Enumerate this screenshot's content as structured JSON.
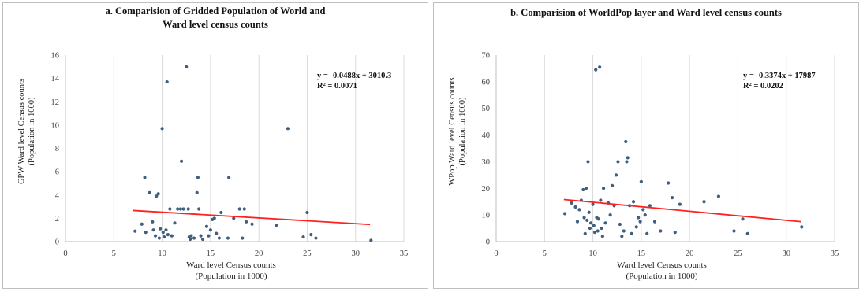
{
  "chart_data": [
    {
      "type": "scatter",
      "title": "a. Comparision of Gridded Population of World and",
      "title_line2": "Ward level census counts",
      "xlabel": "Ward level Census counts",
      "xlabel_line2": "(Population in 1000)",
      "ylabel": "GPW Ward level Census counts",
      "ylabel_line2": "(Population in 1000)",
      "xlim": [
        0,
        35
      ],
      "ylim": [
        0,
        16
      ],
      "x_ticks": [
        "0",
        "5",
        "10",
        "15",
        "20",
        "25",
        "30",
        "35"
      ],
      "y_ticks": [
        "0",
        "2",
        "4",
        "6",
        "8",
        "10",
        "12",
        "14",
        "16"
      ],
      "grid": "vertical",
      "marker_color": "#3f5f7f",
      "trendline_color": "#ff2020",
      "equation": "y = -0.0488x + 3010.3",
      "r_squared": "R² = 0.0071",
      "trendline": {
        "x1": 7,
        "y1": 2.67,
        "x2": 31.5,
        "y2": 1.47
      },
      "points": [
        [
          7.2,
          0.9
        ],
        [
          7.9,
          1.5
        ],
        [
          8.2,
          5.5
        ],
        [
          8.3,
          0.8
        ],
        [
          8.7,
          4.2
        ],
        [
          9.0,
          1.7
        ],
        [
          9.1,
          1.0
        ],
        [
          9.3,
          0.5
        ],
        [
          9.4,
          3.9
        ],
        [
          9.6,
          4.1
        ],
        [
          9.7,
          0.3
        ],
        [
          9.8,
          1.1
        ],
        [
          10.0,
          9.7
        ],
        [
          10.1,
          0.8
        ],
        [
          10.2,
          0.4
        ],
        [
          10.4,
          1.0
        ],
        [
          10.5,
          13.7
        ],
        [
          10.6,
          0.6
        ],
        [
          10.8,
          2.8
        ],
        [
          11.0,
          0.5
        ],
        [
          11.3,
          1.6
        ],
        [
          11.6,
          2.8
        ],
        [
          11.9,
          2.8
        ],
        [
          12.0,
          6.9
        ],
        [
          12.2,
          2.8
        ],
        [
          12.5,
          15.0
        ],
        [
          12.7,
          2.8
        ],
        [
          12.8,
          0.4
        ],
        [
          12.9,
          0.2
        ],
        [
          13.0,
          0.5
        ],
        [
          13.3,
          0.3
        ],
        [
          13.6,
          4.2
        ],
        [
          13.7,
          5.5
        ],
        [
          13.8,
          2.8
        ],
        [
          14.0,
          0.5
        ],
        [
          14.2,
          0.2
        ],
        [
          14.6,
          1.3
        ],
        [
          14.8,
          0.5
        ],
        [
          15.0,
          1.0
        ],
        [
          15.2,
          1.9
        ],
        [
          15.4,
          2.0
        ],
        [
          15.6,
          0.7
        ],
        [
          15.9,
          0.3
        ],
        [
          16.1,
          2.5
        ],
        [
          16.8,
          0.3
        ],
        [
          16.9,
          5.5
        ],
        [
          17.4,
          2.0
        ],
        [
          18.0,
          2.8
        ],
        [
          18.3,
          0.3
        ],
        [
          18.5,
          2.8
        ],
        [
          18.7,
          1.7
        ],
        [
          19.3,
          1.5
        ],
        [
          21.8,
          1.4
        ],
        [
          23.0,
          9.7
        ],
        [
          24.6,
          0.4
        ],
        [
          25.0,
          2.5
        ],
        [
          25.4,
          0.6
        ],
        [
          25.9,
          0.3
        ],
        [
          31.6,
          0.1
        ]
      ]
    },
    {
      "type": "scatter",
      "title": "b. Comparision of WorldPop layer and Ward level census counts",
      "title_line2": "",
      "xlabel": "Ward level Census counts",
      "xlabel_line2": "(Population in 1000)",
      "ylabel": "WPop Ward level Census counts",
      "ylabel_line2": "(Population in 1000)",
      "xlim": [
        0,
        35
      ],
      "ylim": [
        0,
        70
      ],
      "x_ticks": [
        "0",
        "5",
        "10",
        "15",
        "20",
        "25",
        "30",
        "35"
      ],
      "y_ticks": [
        "0",
        "10",
        "20",
        "30",
        "40",
        "50",
        "60",
        "70"
      ],
      "grid": "vertical",
      "marker_color": "#3f5f7f",
      "trendline_color": "#ff2020",
      "equation": "y = -0.3374x + 17987",
      "r_squared": "R² = 0.0202",
      "trendline": {
        "x1": 7,
        "y1": 15.8,
        "x2": 31.5,
        "y2": 7.5
      },
      "points": [
        [
          7.1,
          10.5
        ],
        [
          7.8,
          14.5
        ],
        [
          8.2,
          13.0
        ],
        [
          8.4,
          7.5
        ],
        [
          8.6,
          12.0
        ],
        [
          8.8,
          15.5
        ],
        [
          9.0,
          19.5
        ],
        [
          9.1,
          9.0
        ],
        [
          9.2,
          3.0
        ],
        [
          9.3,
          20.0
        ],
        [
          9.4,
          8.0
        ],
        [
          9.5,
          30.0
        ],
        [
          9.6,
          11.0
        ],
        [
          9.7,
          5.0
        ],
        [
          9.8,
          7.0
        ],
        [
          10.0,
          14.0
        ],
        [
          10.1,
          6.0
        ],
        [
          10.2,
          3.5
        ],
        [
          10.3,
          64.5
        ],
        [
          10.4,
          9.0
        ],
        [
          10.5,
          4.0
        ],
        [
          10.6,
          8.5
        ],
        [
          10.7,
          65.5
        ],
        [
          10.8,
          15.5
        ],
        [
          10.9,
          5.0
        ],
        [
          11.0,
          2.0
        ],
        [
          11.1,
          20.0
        ],
        [
          11.3,
          7.0
        ],
        [
          11.6,
          14.5
        ],
        [
          11.8,
          10.0
        ],
        [
          12.0,
          21.0
        ],
        [
          12.2,
          13.5
        ],
        [
          12.4,
          25.0
        ],
        [
          12.6,
          30.0
        ],
        [
          12.8,
          6.5
        ],
        [
          13.0,
          2.0
        ],
        [
          13.2,
          4.0
        ],
        [
          13.4,
          37.5
        ],
        [
          13.5,
          30.0
        ],
        [
          13.6,
          31.5
        ],
        [
          13.8,
          13.5
        ],
        [
          14.0,
          3.0
        ],
        [
          14.2,
          15.0
        ],
        [
          14.5,
          5.5
        ],
        [
          14.7,
          9.0
        ],
        [
          14.9,
          7.5
        ],
        [
          15.0,
          22.5
        ],
        [
          15.2,
          12.0
        ],
        [
          15.4,
          10.0
        ],
        [
          15.6,
          3.0
        ],
        [
          15.9,
          13.5
        ],
        [
          16.4,
          7.5
        ],
        [
          17.0,
          4.0
        ],
        [
          17.8,
          22.0
        ],
        [
          18.2,
          16.5
        ],
        [
          18.5,
          3.5
        ],
        [
          19.0,
          14.0
        ],
        [
          21.5,
          15.0
        ],
        [
          23.0,
          17.0
        ],
        [
          24.6,
          4.0
        ],
        [
          25.5,
          8.5
        ],
        [
          26.0,
          3.0
        ],
        [
          31.6,
          5.5
        ]
      ]
    }
  ]
}
